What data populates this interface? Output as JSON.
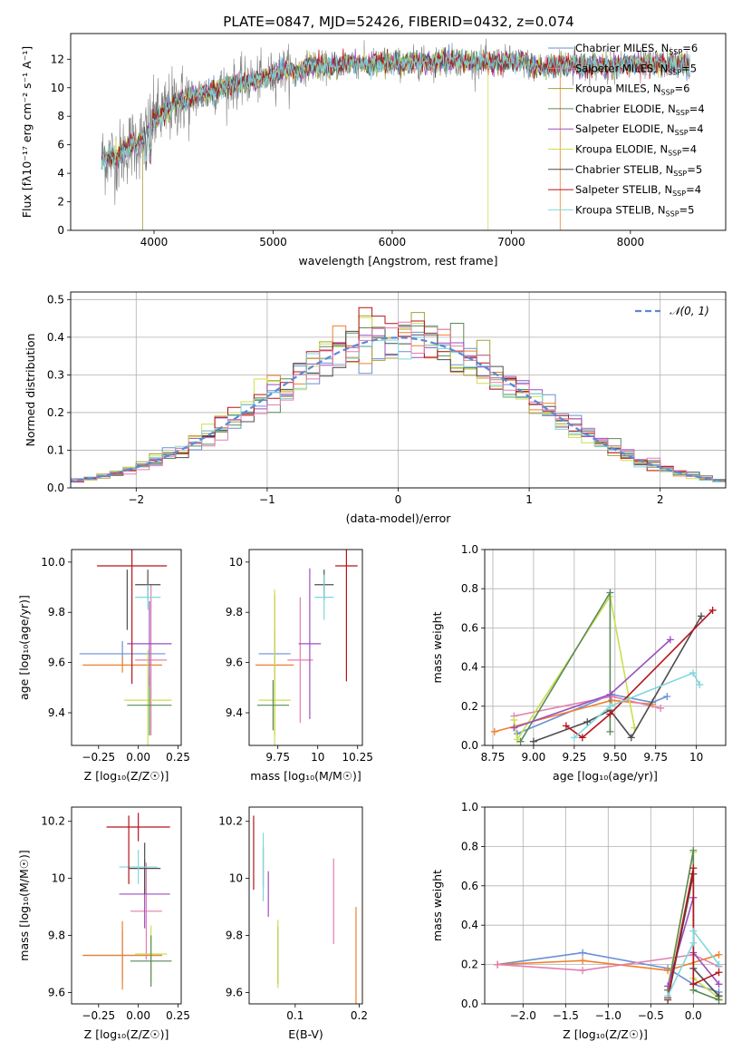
{
  "figure": {
    "title": "PLATE=0847, MJD=52426, FIBERID=0432, z=0.074",
    "colors": [
      "#6b8fd6",
      "#f07f2a",
      "#a5a13a",
      "#5a8a5a",
      "#9b4fc0",
      "#c8e04e",
      "#4d4d4d",
      "#b5141c",
      "#7fd7dc",
      "#e27fae"
    ]
  },
  "chart_data": [
    {
      "id": "spectrum",
      "type": "line",
      "xlabel": "wavelength [Angstrom, rest frame]",
      "ylabel": "Flux [fλ10⁻¹⁷ erg cm⁻² s⁻¹ A⁻¹]",
      "xlim": [
        3300,
        8800
      ],
      "ylim": [
        0,
        13.8
      ],
      "xticks": [
        4000,
        5000,
        6000,
        7000,
        8000
      ],
      "yticks": [
        0,
        2,
        4,
        6,
        8,
        10,
        12
      ],
      "grid": false,
      "legend_position": "upper-right",
      "observed_spectrum": {
        "color": "#808080",
        "x": [
          3560,
          3620,
          3700,
          3800,
          3900,
          4000,
          4100,
          4200,
          4300,
          4400,
          4500,
          4600,
          4700,
          4800,
          4900,
          5000,
          5100,
          5200,
          5300,
          5400,
          5500,
          5600,
          5700,
          5800,
          5900,
          6000,
          6100,
          6200,
          6300,
          6400,
          6500,
          6600,
          6700,
          6800,
          6900,
          7000,
          7100,
          7200,
          7300,
          7400,
          7500,
          7600,
          7700,
          7800,
          7900,
          8000,
          8100,
          8200,
          8300,
          8400,
          8500
        ],
        "y": [
          5.0,
          5.2,
          5.1,
          6.0,
          6.3,
          7.8,
          8.3,
          9.1,
          9.2,
          9.5,
          9.8,
          10.1,
          10.3,
          10.5,
          10.6,
          10.9,
          11.3,
          11.0,
          11.6,
          11.4,
          11.5,
          11.7,
          11.7,
          11.6,
          11.8,
          11.7,
          11.7,
          11.8,
          11.7,
          11.9,
          11.9,
          11.9,
          11.8,
          11.8,
          11.8,
          11.9,
          11.8,
          11.5,
          11.4,
          11.6,
          11.7,
          11.4,
          11.6,
          11.5,
          11.6,
          11.7,
          11.6,
          11.6,
          11.7,
          11.7,
          11.6
        ]
      },
      "legend": [
        {
          "label": "Chabrier MILES, N",
          "sub": "SSP",
          "value": "=6",
          "color": "#6b8fd6"
        },
        {
          "label": "Salpeter MILES, N",
          "sub": "SSP",
          "value": "=5",
          "color": "#e27fae"
        },
        {
          "label": "Kroupa MILES, N",
          "sub": "SSP",
          "value": "=6",
          "color": "#a5a13a"
        },
        {
          "label": "Chabrier ELODIE, N",
          "sub": "SSP",
          "value": "=4",
          "color": "#5a8a5a"
        },
        {
          "label": "Salpeter ELODIE, N",
          "sub": "SSP",
          "value": "=4",
          "color": "#9b4fc0"
        },
        {
          "label": "Kroupa ELODIE, N",
          "sub": "SSP",
          "value": "=4",
          "color": "#c8e04e"
        },
        {
          "label": "Chabrier STELIB, N",
          "sub": "SSP",
          "value": "=5",
          "color": "#4d4d4d"
        },
        {
          "label": "Salpeter STELIB, N",
          "sub": "SSP",
          "value": "=4",
          "color": "#b5141c"
        },
        {
          "label": "Kroupa STELIB, N",
          "sub": "SSP",
          "value": "=5",
          "color": "#7fd7dc"
        }
      ]
    },
    {
      "id": "residuals",
      "type": "histogram",
      "xlabel": "(data-model)/error",
      "ylabel": "Normed distribution",
      "xlim": [
        -2.5,
        2.5
      ],
      "ylim": [
        0,
        0.52
      ],
      "xticks": [
        -2,
        -1,
        0,
        1,
        2
      ],
      "yticks": [
        0.0,
        0.1,
        0.2,
        0.3,
        0.4,
        0.5
      ],
      "grid": true,
      "legend_position": "upper-right",
      "bin_width": 0.1,
      "reference": {
        "label": "𝒩(0, 1)",
        "mean": 0,
        "sigma": 1,
        "color": "#5a8ad6"
      }
    },
    {
      "id": "Z-age",
      "type": "errorbar",
      "xlabel": "Z [log₁₀(Z/Z☉)]",
      "ylabel": "age  [log₁₀(age/yr)]",
      "xlim": [
        -0.42,
        0.27
      ],
      "ylim": [
        9.27,
        10.05
      ],
      "xticks": [
        -0.25,
        0.0,
        0.25
      ],
      "ytick_labels": [
        "9.4",
        "9.6",
        "9.8",
        "10.0"
      ],
      "yticks": [
        9.4,
        9.6,
        9.8,
        10.0
      ],
      "grid": false,
      "points": [
        {
          "x": -0.1,
          "xerr": 0.27,
          "y": 9.635,
          "yerr": 0.05,
          "color": "#6b8fd6"
        },
        {
          "x": -0.1,
          "xerr": 0.25,
          "y": 9.59,
          "yerr": 0.03,
          "color": "#f07f2a"
        },
        {
          "x": 0.08,
          "xerr": 0.1,
          "y": 9.61,
          "yerr": 0.3,
          "color": "#e27fae"
        },
        {
          "x": 0.06,
          "xerr": 0.15,
          "y": 9.45,
          "yerr": 0.2,
          "color": "#c8e04e"
        },
        {
          "x": 0.07,
          "xerr": 0.14,
          "y": 9.43,
          "yerr": 0.12,
          "color": "#5a8a5a"
        },
        {
          "x": 0.07,
          "xerr": 0.14,
          "y": 9.675,
          "yerr": 0.17,
          "color": "#9b4fc0"
        },
        {
          "x": 0.06,
          "xerr": 0.08,
          "y": 9.91,
          "yerr": 0.06,
          "color": "#4d4d4d"
        },
        {
          "x": -0.07,
          "xerr": 0.0,
          "y": 9.85,
          "yerr": 0.12,
          "color": "#4d4d4d"
        },
        {
          "x": 0.06,
          "xerr": 0.08,
          "y": 9.86,
          "yerr": 0.05,
          "color": "#7fd7dc"
        },
        {
          "x": -0.04,
          "xerr": 0.22,
          "y": 9.985,
          "yerr": 0.47,
          "color": "#b5141c"
        }
      ]
    },
    {
      "id": "mass-age",
      "type": "errorbar",
      "xlabel": "mass [log₁₀(M/M☉)]",
      "ylabel": "",
      "xlim": [
        9.57,
        10.28
      ],
      "ylim": [
        9.27,
        10.05
      ],
      "xticks": [
        9.75,
        10.0,
        10.25
      ],
      "yticks": [
        9.4,
        9.6,
        9.8,
        10.0
      ],
      "grid": false,
      "points": [
        {
          "x": 9.73,
          "xerr": 0.1,
          "y": 9.635,
          "yerr": 0.1,
          "color": "#6b8fd6"
        },
        {
          "x": 9.73,
          "xerr": 0.12,
          "y": 9.59,
          "yerr": 0.28,
          "color": "#f07f2a"
        },
        {
          "x": 9.89,
          "xerr": 0.08,
          "y": 9.61,
          "yerr": 0.25,
          "color": "#e27fae"
        },
        {
          "x": 9.73,
          "xerr": 0.1,
          "y": 9.45,
          "yerr": 0.44,
          "color": "#c8e04e"
        },
        {
          "x": 9.72,
          "xerr": 0.1,
          "y": 9.43,
          "yerr": 0.1,
          "color": "#5a8a5a"
        },
        {
          "x": 9.95,
          "xerr": 0.07,
          "y": 9.675,
          "yerr": 0.3,
          "color": "#9b4fc0"
        },
        {
          "x": 10.04,
          "xerr": 0.06,
          "y": 9.91,
          "yerr": 0.06,
          "color": "#4d4d4d"
        },
        {
          "x": 10.04,
          "xerr": 0.06,
          "y": 9.86,
          "yerr": 0.09,
          "color": "#7fd7dc"
        },
        {
          "x": 10.18,
          "xerr": 0.07,
          "y": 9.985,
          "yerr": 0.46,
          "color": "#b5141c"
        }
      ]
    },
    {
      "id": "age-weight",
      "type": "line",
      "xlabel": "age  [log₁₀(age/yr)]",
      "ylabel": "mass weight",
      "xlim": [
        8.7,
        10.18
      ],
      "ylim": [
        0,
        1.0
      ],
      "xticks": [
        8.75,
        9.0,
        9.25,
        9.5,
        9.75,
        10.0
      ],
      "yticks": [
        0.0,
        0.2,
        0.4,
        0.6,
        0.8,
        1.0
      ],
      "grid": true,
      "series": [
        {
          "x": [
            8.9,
            9.48,
            9.73,
            9.82
          ],
          "y": [
            0.06,
            0.26,
            0.22,
            0.25
          ],
          "color": "#6b8fd6"
        },
        {
          "x": [
            8.76,
            9.48,
            9.73
          ],
          "y": [
            0.07,
            0.23,
            0.21
          ],
          "color": "#f07f2a"
        },
        {
          "x": [
            8.88,
            9.48,
            9.78
          ],
          "y": [
            0.15,
            0.25,
            0.19
          ],
          "color": "#e27fae"
        },
        {
          "x": [
            8.88,
            8.9,
            9.47,
            9.62
          ],
          "y": [
            0.13,
            0.03,
            0.76,
            0.09
          ],
          "color": "#c8e04e"
        },
        {
          "x": [
            8.92,
            9.47,
            9.47
          ],
          "y": [
            0.02,
            0.78,
            0.07
          ],
          "color": "#5a8a5a"
        },
        {
          "x": [
            8.88,
            9.47,
            9.84
          ],
          "y": [
            0.09,
            0.26,
            0.54
          ],
          "color": "#9b4fc0"
        },
        {
          "x": [
            9.0,
            9.33,
            9.47,
            9.6,
            10.03
          ],
          "y": [
            0.02,
            0.12,
            0.18,
            0.04,
            0.66
          ],
          "color": "#4d4d4d"
        },
        {
          "x": [
            9.2,
            9.3,
            9.47,
            10.1
          ],
          "y": [
            0.1,
            0.04,
            0.16,
            0.69
          ],
          "color": "#b5141c"
        },
        {
          "x": [
            9.25,
            9.47,
            9.98,
            10.02
          ],
          "y": [
            0.04,
            0.2,
            0.37,
            0.31
          ],
          "color": "#7fd7dc"
        }
      ]
    },
    {
      "id": "Z-mass",
      "type": "errorbar",
      "xlabel": "Z [log₁₀(Z/Z☉)]",
      "ylabel": "mass [log₁₀(M/M☉)]",
      "xlim": [
        -0.42,
        0.27
      ],
      "ylim": [
        9.56,
        10.25
      ],
      "xticks": [
        -0.25,
        0.0,
        0.25
      ],
      "yticks": [
        9.6,
        9.8,
        10.0,
        10.2
      ],
      "grid": false,
      "points": [
        {
          "x": -0.1,
          "xerr": 0.25,
          "y": 9.73,
          "yerr": 0.09,
          "color": "#6b8fd6"
        },
        {
          "x": -0.1,
          "xerr": 0.25,
          "y": 9.73,
          "yerr": 0.12,
          "color": "#f07f2a"
        },
        {
          "x": 0.05,
          "xerr": 0.1,
          "y": 9.885,
          "yerr": 0.17,
          "color": "#e27fae"
        },
        {
          "x": 0.08,
          "xerr": 0.1,
          "y": 9.735,
          "yerr": 0.1,
          "color": "#c8e04e"
        },
        {
          "x": 0.08,
          "xerr": 0.13,
          "y": 9.71,
          "yerr": 0.09,
          "color": "#5a8a5a"
        },
        {
          "x": 0.04,
          "xerr": 0.16,
          "y": 9.945,
          "yerr": 0.12,
          "color": "#9b4fc0"
        },
        {
          "x": 0.04,
          "xerr": 0.1,
          "y": 10.035,
          "yerr": 0.09,
          "color": "#4d4d4d"
        },
        {
          "x": 0.0,
          "xerr": 0.12,
          "y": 10.04,
          "yerr": 0.06,
          "color": "#7fd7dc"
        },
        {
          "x": 0.0,
          "xerr": 0.2,
          "y": 10.18,
          "yerr": 0.05,
          "color": "#b5141c"
        },
        {
          "x": -0.06,
          "xerr": 0.0,
          "y": 10.1,
          "yerr": 0.12,
          "color": "#b5141c"
        }
      ]
    },
    {
      "id": "ebv-mass",
      "type": "errorbar",
      "xlabel": "E(B-V)",
      "ylabel": "",
      "xlim": [
        0.028,
        0.205
      ],
      "ylim": [
        9.56,
        10.25
      ],
      "xticks": [
        0.1,
        0.2
      ],
      "yticks": [
        9.6,
        9.8,
        10.0,
        10.2
      ],
      "grid": false,
      "points": [
        {
          "x": 0.035,
          "xerr": 0,
          "y": 10.09,
          "yerr": 0.13,
          "color": "#b5141c"
        },
        {
          "x": 0.05,
          "xerr": 0,
          "y": 10.04,
          "yerr": 0.07,
          "color": "#4d4d4d"
        },
        {
          "x": 0.05,
          "xerr": 0,
          "y": 10.04,
          "yerr": 0.12,
          "color": "#7fd7dc"
        },
        {
          "x": 0.058,
          "xerr": 0,
          "y": 9.945,
          "yerr": 0.08,
          "color": "#9b4fc0"
        },
        {
          "x": 0.073,
          "xerr": 0,
          "y": 9.73,
          "yerr": 0.1,
          "color": "#5a8a5a"
        },
        {
          "x": 0.073,
          "xerr": 0,
          "y": 9.735,
          "yerr": 0.12,
          "color": "#c8e04e"
        },
        {
          "x": 0.16,
          "xerr": 0,
          "y": 9.92,
          "yerr": 0.15,
          "color": "#e27fae"
        },
        {
          "x": 0.195,
          "xerr": 0,
          "y": 9.73,
          "yerr": 0.17,
          "color": "#f07f2a"
        }
      ]
    },
    {
      "id": "Z-weight",
      "type": "line",
      "xlabel": "Z [log₁₀(Z/Z☉)]",
      "ylabel": "mass weight",
      "xlim": [
        -2.45,
        0.38
      ],
      "ylim": [
        0,
        1.0
      ],
      "xticks": [
        -2.0,
        -1.5,
        -1.0,
        -0.5,
        0.0
      ],
      "yticks": [
        0.0,
        0.2,
        0.4,
        0.6,
        0.8,
        1.0
      ],
      "grid": true,
      "series": [
        {
          "x": [
            -2.3,
            -1.3,
            -0.3,
            0.0,
            0.3
          ],
          "y": [
            0.2,
            0.26,
            0.18,
            0.1,
            0.06
          ],
          "color": "#6b8fd6"
        },
        {
          "x": [
            -2.3,
            -1.3,
            -0.3,
            0.3
          ],
          "y": [
            0.2,
            0.22,
            0.17,
            0.25
          ],
          "color": "#f07f2a"
        },
        {
          "x": [
            -2.3,
            -1.3,
            0.0,
            0.3
          ],
          "y": [
            0.2,
            0.17,
            0.25,
            0.19
          ],
          "color": "#e27fae"
        },
        {
          "x": [
            -0.3,
            0.0,
            0.0,
            0.3
          ],
          "y": [
            0.09,
            0.77,
            0.13,
            0.03
          ],
          "color": "#c8e04e"
        },
        {
          "x": [
            -0.3,
            0.0,
            0.0,
            0.3
          ],
          "y": [
            0.07,
            0.78,
            0.07,
            0.02
          ],
          "color": "#5a8a5a"
        },
        {
          "x": [
            -0.3,
            0.0,
            0.0,
            0.3
          ],
          "y": [
            0.09,
            0.54,
            0.26,
            0.1
          ],
          "color": "#9b4fc0"
        },
        {
          "x": [
            -0.3,
            0.0,
            0.0,
            0.3
          ],
          "y": [
            0.02,
            0.66,
            0.18,
            0.04
          ],
          "color": "#4d4d4d"
        },
        {
          "x": [
            -0.3,
            0.0,
            0.0,
            0.3
          ],
          "y": [
            0.03,
            0.69,
            0.1,
            0.16
          ],
          "color": "#b5141c"
        },
        {
          "x": [
            -0.3,
            0.0,
            0.0,
            0.3
          ],
          "y": [
            0.04,
            0.31,
            0.37,
            0.2
          ],
          "color": "#7fd7dc"
        }
      ]
    }
  ]
}
